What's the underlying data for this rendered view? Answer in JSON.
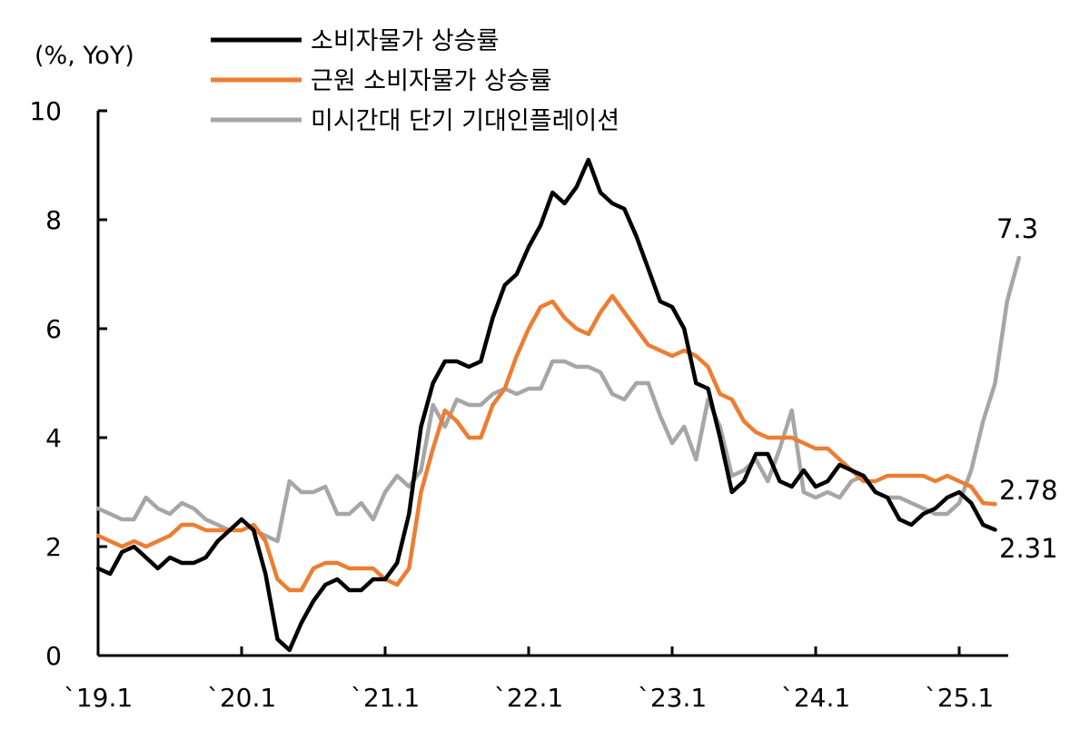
{
  "chart_data": {
    "type": "line",
    "unit_label": "(%, YoY)",
    "xlabel": "",
    "ylabel": "",
    "ylim": [
      0,
      10
    ],
    "y_ticks": [
      "0",
      "2",
      "4",
      "6",
      "8",
      "10"
    ],
    "x_ticks": [
      "`19.1",
      "`20.1",
      "`21.1",
      "`22.1",
      "`23.1",
      "`24.1",
      "`25.1"
    ],
    "x_start": "2019-01",
    "legend_position": "top",
    "grid": false,
    "series": [
      {
        "name": "소비자물가 상승률",
        "color": "#000000",
        "end_label": "2.31",
        "values": [
          1.6,
          1.5,
          1.9,
          2.0,
          1.8,
          1.6,
          1.8,
          1.7,
          1.7,
          1.8,
          2.1,
          2.3,
          2.5,
          2.3,
          1.5,
          0.3,
          0.1,
          0.6,
          1.0,
          1.3,
          1.4,
          1.2,
          1.2,
          1.4,
          1.4,
          1.7,
          2.6,
          4.2,
          5.0,
          5.4,
          5.4,
          5.3,
          5.4,
          6.2,
          6.8,
          7.0,
          7.5,
          7.9,
          8.5,
          8.3,
          8.6,
          9.1,
          8.5,
          8.3,
          8.2,
          7.7,
          7.1,
          6.5,
          6.4,
          6.0,
          5.0,
          4.9,
          4.0,
          3.0,
          3.2,
          3.7,
          3.7,
          3.2,
          3.1,
          3.4,
          3.1,
          3.2,
          3.5,
          3.4,
          3.3,
          3.0,
          2.9,
          2.5,
          2.4,
          2.6,
          2.7,
          2.9,
          3.0,
          2.8,
          2.4,
          2.31
        ]
      },
      {
        "name": "근원 소비자물가 상승률",
        "color": "#ED7D31",
        "end_label": "2.78",
        "values": [
          2.2,
          2.1,
          2.0,
          2.1,
          2.0,
          2.1,
          2.2,
          2.4,
          2.4,
          2.3,
          2.3,
          2.3,
          2.3,
          2.4,
          2.1,
          1.4,
          1.2,
          1.2,
          1.6,
          1.7,
          1.7,
          1.6,
          1.6,
          1.6,
          1.4,
          1.3,
          1.6,
          3.0,
          3.8,
          4.5,
          4.3,
          4.0,
          4.0,
          4.6,
          4.9,
          5.5,
          6.0,
          6.4,
          6.5,
          6.2,
          6.0,
          5.9,
          6.3,
          6.6,
          6.3,
          6.0,
          5.7,
          5.6,
          5.5,
          5.6,
          5.5,
          5.3,
          4.8,
          4.7,
          4.3,
          4.1,
          4.0,
          4.0,
          4.0,
          3.9,
          3.8,
          3.8,
          3.6,
          3.4,
          3.2,
          3.2,
          3.3,
          3.3,
          3.3,
          3.3,
          3.2,
          3.3,
          3.2,
          3.1,
          2.8,
          2.78
        ]
      },
      {
        "name": "미시간대 단기 기대인플레이션",
        "color": "#A6A6A6",
        "end_label": "7.3",
        "values": [
          2.7,
          2.6,
          2.5,
          2.5,
          2.9,
          2.7,
          2.6,
          2.8,
          2.7,
          2.5,
          2.4,
          2.3,
          2.5,
          2.3,
          2.2,
          2.1,
          3.2,
          3.0,
          3.0,
          3.1,
          2.6,
          2.6,
          2.8,
          2.5,
          3.0,
          3.3,
          3.1,
          3.4,
          4.6,
          4.2,
          4.7,
          4.6,
          4.6,
          4.8,
          4.9,
          4.8,
          4.9,
          4.9,
          5.4,
          5.4,
          5.3,
          5.3,
          5.2,
          4.8,
          4.7,
          5.0,
          5.0,
          4.4,
          3.9,
          4.2,
          3.6,
          4.7,
          4.2,
          3.3,
          3.4,
          3.6,
          3.2,
          3.8,
          4.5,
          3.0,
          2.9,
          3.0,
          2.9,
          3.2,
          3.3,
          3.0,
          2.9,
          2.9,
          2.8,
          2.7,
          2.6,
          2.6,
          2.8,
          3.4,
          4.3,
          5.0,
          6.5,
          7.3
        ]
      }
    ]
  }
}
